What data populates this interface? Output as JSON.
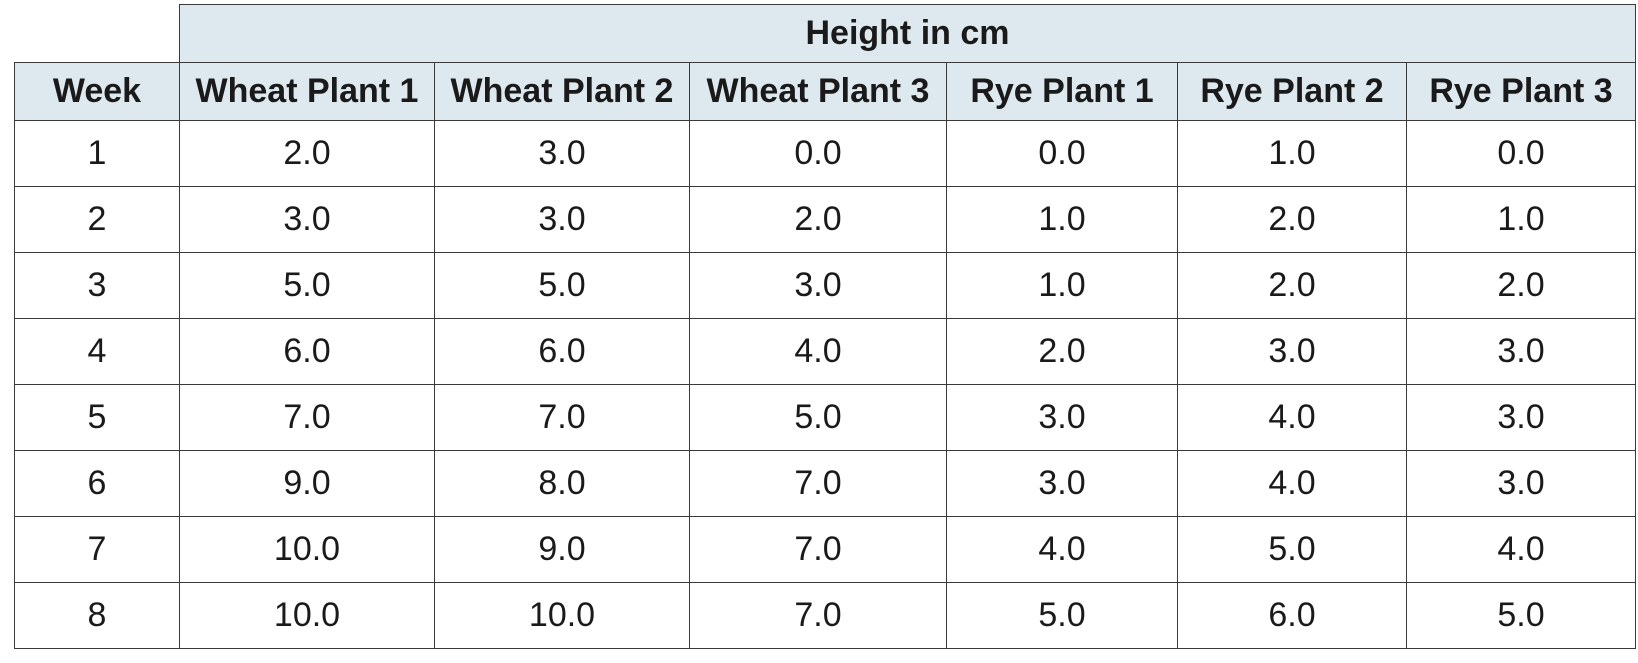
{
  "chart_data": {
    "type": "table",
    "group_header": "Height in cm",
    "columns": [
      "Week",
      "Wheat Plant 1",
      "Wheat Plant 2",
      "Wheat Plant 3",
      "Rye Plant 1",
      "Rye Plant 2",
      "Rye Plant 3"
    ],
    "rows": [
      [
        "1",
        "2.0",
        "3.0",
        "0.0",
        "0.0",
        "1.0",
        "0.0"
      ],
      [
        "2",
        "3.0",
        "3.0",
        "2.0",
        "1.0",
        "2.0",
        "1.0"
      ],
      [
        "3",
        "5.0",
        "5.0",
        "3.0",
        "1.0",
        "2.0",
        "2.0"
      ],
      [
        "4",
        "6.0",
        "6.0",
        "4.0",
        "2.0",
        "3.0",
        "3.0"
      ],
      [
        "5",
        "7.0",
        "7.0",
        "5.0",
        "3.0",
        "4.0",
        "3.0"
      ],
      [
        "6",
        "9.0",
        "8.0",
        "7.0",
        "3.0",
        "4.0",
        "3.0"
      ],
      [
        "7",
        "10.0",
        "9.0",
        "7.0",
        "4.0",
        "5.0",
        "4.0"
      ],
      [
        "8",
        "10.0",
        "10.0",
        "7.0",
        "5.0",
        "6.0",
        "5.0"
      ]
    ],
    "colors": {
      "header_background": "#dde8ef",
      "border": "#3a3a3a"
    }
  }
}
